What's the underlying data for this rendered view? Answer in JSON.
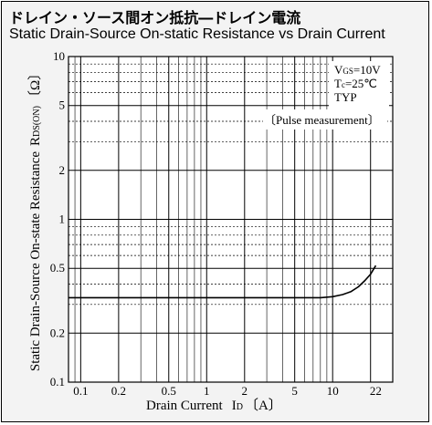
{
  "titles": {
    "jp": "ドレイン・ソース間オン抵抗―ドレイン電流",
    "en": "Static Drain-Source On-static Resistance vs Drain Current"
  },
  "chart_data": {
    "type": "line",
    "title": "Static Drain-Source On-static Resistance vs Drain Current",
    "xlabel": "Drain Current",
    "xlabel_symbol": "I",
    "xlabel_sub": "D",
    "xlabel_unit": "〔A〕",
    "ylabel": "Static Drain-Source On-state Resistance",
    "ylabel_symbol": "R",
    "ylabel_sub": "DS(ON)",
    "ylabel_unit": "〔Ω〕",
    "x_scale": "log",
    "y_scale": "log",
    "xlim": [
      0.08,
      30
    ],
    "ylim": [
      0.1,
      10
    ],
    "grid": true,
    "x_tick_labels": [
      {
        "value": 0.1,
        "label": "0.1"
      },
      {
        "value": 0.2,
        "label": "0.2"
      },
      {
        "value": 0.5,
        "label": "0.5"
      },
      {
        "value": 1,
        "label": "1"
      },
      {
        "value": 2,
        "label": "2"
      },
      {
        "value": 5,
        "label": "5"
      },
      {
        "value": 10,
        "label": "10"
      },
      {
        "value": 22,
        "label": "22"
      }
    ],
    "y_tick_labels": [
      {
        "value": 0.1,
        "label": "0.1"
      },
      {
        "value": 0.2,
        "label": "0.2"
      },
      {
        "value": 0.5,
        "label": "0.5"
      },
      {
        "value": 1,
        "label": "1"
      },
      {
        "value": 2,
        "label": "2"
      },
      {
        "value": 5,
        "label": "5"
      },
      {
        "value": 10,
        "label": "10"
      }
    ],
    "conditions": {
      "vgs_symbol": "V",
      "vgs_sub": "GS",
      "vgs_value": "=10V",
      "tc_symbol": "T",
      "tc_sub": "c",
      "tc_value": "=25℃",
      "typ": "TYP",
      "note": "〔Pulse measurement〕"
    },
    "series": [
      {
        "x": [
          0.08,
          0.1,
          0.2,
          0.5,
          1,
          2,
          5,
          8,
          10,
          12,
          14,
          16,
          18,
          20,
          22
        ],
        "y": [
          0.33,
          0.33,
          0.33,
          0.33,
          0.33,
          0.33,
          0.33,
          0.33,
          0.335,
          0.345,
          0.36,
          0.385,
          0.42,
          0.46,
          0.52
        ],
        "color": "#000000"
      }
    ]
  }
}
